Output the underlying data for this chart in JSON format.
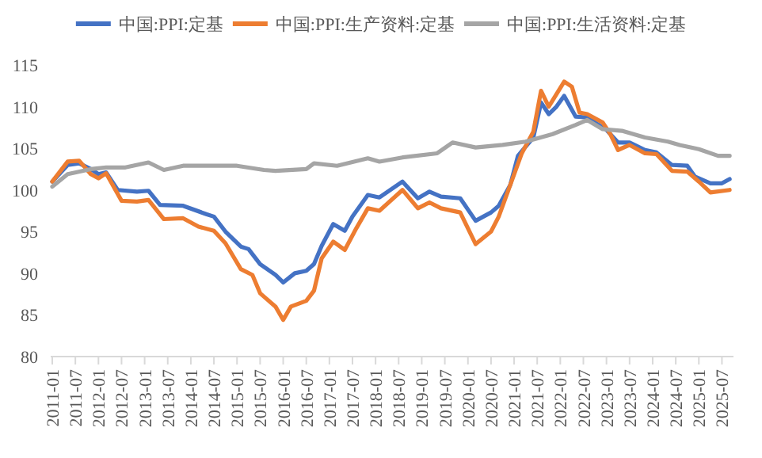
{
  "chart_data": {
    "type": "line",
    "legend": "top",
    "grid": false,
    "line_style": "solid",
    "marker": "none",
    "xlim": [
      "2011-01",
      "2025-10"
    ],
    "ylim": [
      80,
      115
    ],
    "yticks": [
      80,
      85,
      90,
      95,
      100,
      105,
      110,
      115
    ],
    "xticks": [
      "2011-01",
      "2011-07",
      "2012-01",
      "2012-07",
      "2013-01",
      "2013-07",
      "2014-01",
      "2014-07",
      "2015-01",
      "2015-07",
      "2016-01",
      "2016-07",
      "2017-01",
      "2017-07",
      "2018-01",
      "2018-07",
      "2019-01",
      "2019-07",
      "2020-01",
      "2020-07",
      "2021-01",
      "2021-07",
      "2022-01",
      "2022-07",
      "2023-01",
      "2023-07",
      "2024-01",
      "2024-07",
      "2025-01",
      "2025-07"
    ],
    "series": [
      {
        "name": "中国:PPI:定基",
        "color": "#4472c4",
        "x": [
          "2011-01",
          "2011-05",
          "2011-08",
          "2011-11",
          "2012-01",
          "2012-03",
          "2012-06",
          "2012-11",
          "2013-02",
          "2013-05",
          "2013-11",
          "2014-05",
          "2014-07",
          "2014-10",
          "2015-02",
          "2015-04",
          "2015-07",
          "2015-11",
          "2016-01",
          "2016-04",
          "2016-07",
          "2016-09",
          "2016-11",
          "2017-02",
          "2017-05",
          "2017-07",
          "2017-11",
          "2018-02",
          "2018-08",
          "2018-12",
          "2019-03",
          "2019-06",
          "2019-11",
          "2020-03",
          "2020-07",
          "2020-09",
          "2020-12",
          "2021-02",
          "2021-06",
          "2021-08",
          "2021-10",
          "2021-12",
          "2022-02",
          "2022-05",
          "2022-08",
          "2022-11",
          "2023-01",
          "2023-04",
          "2023-07",
          "2023-11",
          "2024-02",
          "2024-06",
          "2024-10",
          "2024-12",
          "2025-04",
          "2025-07",
          "2025-09"
        ],
        "values": [
          101.0,
          103.0,
          103.2,
          102.5,
          101.9,
          102.1,
          100.0,
          99.8,
          99.9,
          98.2,
          98.1,
          97.1,
          96.8,
          95.0,
          93.2,
          92.9,
          91.1,
          89.8,
          88.9,
          90.0,
          90.3,
          91.1,
          93.3,
          95.9,
          95.1,
          96.8,
          99.4,
          99.1,
          101.0,
          99.0,
          99.8,
          99.2,
          99.0,
          96.3,
          97.3,
          98.1,
          100.6,
          104.1,
          106.3,
          110.5,
          109.1,
          110.0,
          111.3,
          108.8,
          108.7,
          107.8,
          107.2,
          105.7,
          105.7,
          104.8,
          104.5,
          103.0,
          102.9,
          101.6,
          100.8,
          100.8,
          101.3
        ]
      },
      {
        "name": "中国:PPI:生产资料:定基",
        "color": "#ed7d31",
        "x": [
          "2011-01",
          "2011-05",
          "2011-08",
          "2011-11",
          "2012-01",
          "2012-03",
          "2012-07",
          "2012-11",
          "2013-02",
          "2013-06",
          "2013-11",
          "2014-03",
          "2014-07",
          "2014-10",
          "2015-02",
          "2015-05",
          "2015-07",
          "2015-11",
          "2016-01",
          "2016-03",
          "2016-07",
          "2016-09",
          "2016-11",
          "2017-02",
          "2017-05",
          "2017-08",
          "2017-11",
          "2018-02",
          "2018-08",
          "2018-12",
          "2019-03",
          "2019-06",
          "2019-11",
          "2020-03",
          "2020-07",
          "2020-09",
          "2020-12",
          "2021-03",
          "2021-06",
          "2021-08",
          "2021-10",
          "2022-02",
          "2022-04",
          "2022-06",
          "2022-08",
          "2022-12",
          "2023-02",
          "2023-04",
          "2023-07",
          "2023-11",
          "2024-02",
          "2024-06",
          "2024-10",
          "2025-01",
          "2025-04",
          "2025-09"
        ],
        "values": [
          101.0,
          103.4,
          103.5,
          101.9,
          101.4,
          102.0,
          98.7,
          98.6,
          98.8,
          96.5,
          96.6,
          95.6,
          95.1,
          93.6,
          90.5,
          89.8,
          87.6,
          86.0,
          84.4,
          86.0,
          86.7,
          87.9,
          91.8,
          93.8,
          92.8,
          95.4,
          97.8,
          97.5,
          100.0,
          97.8,
          98.5,
          97.8,
          97.3,
          93.5,
          95.0,
          96.8,
          100.6,
          104.4,
          107.0,
          111.9,
          110.0,
          113.0,
          112.4,
          109.3,
          109.1,
          108.1,
          106.7,
          104.8,
          105.4,
          104.4,
          104.3,
          102.3,
          102.2,
          101.0,
          99.7,
          100.0
        ]
      },
      {
        "name": "中国:PPI:生活资料:定基",
        "color": "#a5a5a5",
        "x": [
          "2011-01",
          "2011-05",
          "2011-11",
          "2012-03",
          "2012-08",
          "2013-02",
          "2013-06",
          "2013-11",
          "2015-01",
          "2015-08",
          "2015-11",
          "2016-07",
          "2016-09",
          "2017-03",
          "2017-11",
          "2018-02",
          "2018-08",
          "2019-05",
          "2019-09",
          "2020-03",
          "2020-10",
          "2021-04",
          "2021-11",
          "2022-05",
          "2022-08",
          "2022-12",
          "2023-05",
          "2023-11",
          "2024-05",
          "2024-08",
          "2025-01",
          "2025-06",
          "2025-09"
        ],
        "values": [
          100.4,
          101.9,
          102.5,
          102.7,
          102.7,
          103.3,
          102.4,
          102.9,
          102.9,
          102.4,
          102.3,
          102.5,
          103.2,
          102.9,
          103.8,
          103.4,
          103.9,
          104.4,
          105.7,
          105.1,
          105.4,
          105.8,
          106.7,
          107.8,
          108.4,
          107.3,
          107.1,
          106.3,
          105.8,
          105.4,
          104.9,
          104.1,
          104.1
        ]
      }
    ]
  }
}
